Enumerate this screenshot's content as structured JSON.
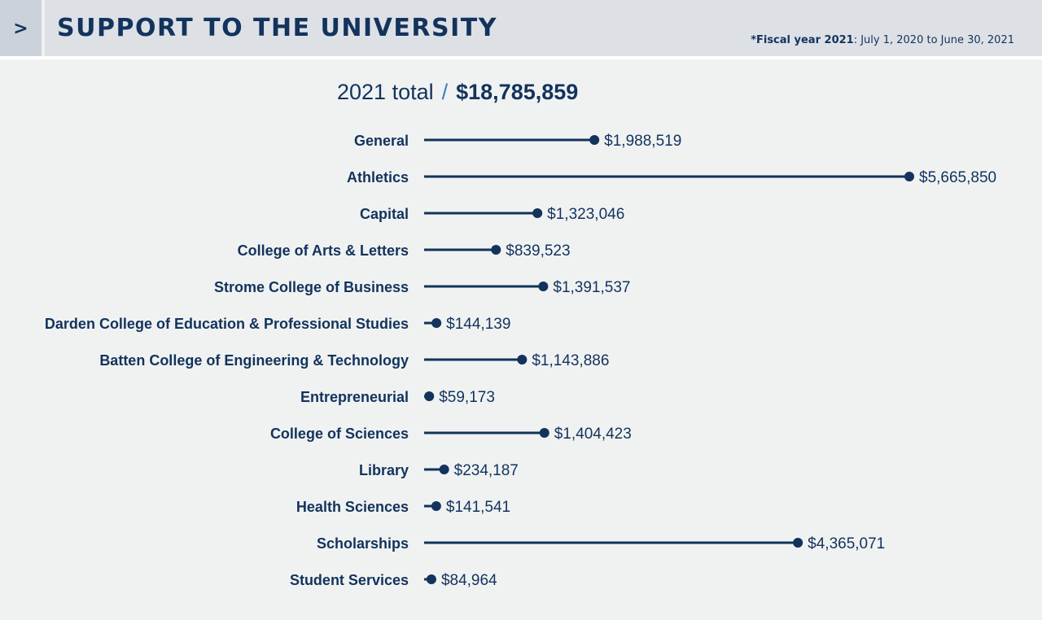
{
  "header": {
    "tab_glyph": ">",
    "title": "SUPPORT TO THE UNIVERSITY",
    "note_prefix": "*Fiscal year 2021",
    "note_suffix": ": July 1, 2020 to June 30, 2021"
  },
  "total": {
    "label": "2021 total",
    "separator": "/",
    "amount": "$18,785,859"
  },
  "colors": {
    "primary": "#12335c",
    "accent": "#3a7cc1",
    "background": "#f0f2f2",
    "header_bg": "#dde1e6"
  },
  "chart_data": {
    "type": "bar",
    "title": "",
    "orientation": "horizontal",
    "style": "lollipop",
    "categories": [
      "General",
      "Athletics",
      "Capital",
      "College of Arts & Letters",
      "Strome College of Business",
      "Darden College of Education & Professional Studies",
      "Batten College of Engineering & Technology",
      "Entrepreneurial",
      "College of Sciences",
      "Library",
      "Health Sciences",
      "Scholarships",
      "Student Services"
    ],
    "values": [
      1988519,
      5665850,
      1323046,
      839523,
      1391537,
      144139,
      1143886,
      59173,
      1404423,
      234187,
      141541,
      4365071,
      84964
    ],
    "value_labels": [
      "$1,988,519",
      "$5,665,850",
      "$1,323,046",
      "$839,523",
      "$1,391,537",
      "$144,139",
      "$1,143,886",
      "$59,173",
      "$1,404,423",
      "$234,187",
      "$141,541",
      "$4,365,071",
      "$84,964"
    ],
    "xlabel": "",
    "ylabel": "",
    "grid": false
  }
}
